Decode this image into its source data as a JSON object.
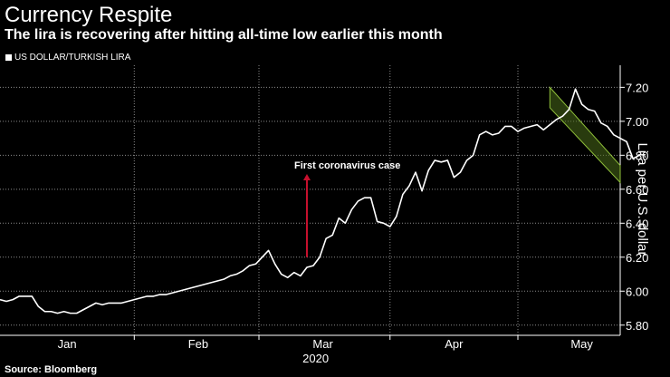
{
  "title": "Currency Respite",
  "subtitle": "The lira is recovering after hitting all-time low earlier this month",
  "legend_label": "US DOLLAR/TURKISH LIRA",
  "source": "Source: Bloomberg",
  "colors": {
    "background": "#000000",
    "line": "#ffffff",
    "arrow": "#c8102e",
    "trend_fill": "#4a6b1a",
    "trend_stroke": "#8fbf3a"
  },
  "chart_data": {
    "type": "line",
    "title": "Currency Respite",
    "ylabel": "Lira per U.S. dollar",
    "xlabel": "2020",
    "ylim": [
      5.74,
      7.33
    ],
    "yticks": [
      5.8,
      6.0,
      6.2,
      6.4,
      6.6,
      6.8,
      7.0,
      7.2
    ],
    "ytick_labels": [
      "5.80",
      "6.00",
      "6.20",
      "6.40",
      "6.60",
      "6.80",
      "7.00",
      "7.20"
    ],
    "xlim": [
      0,
      97
    ],
    "month_labels": [
      "Jan",
      "Feb",
      "Mar",
      "Apr",
      "May"
    ],
    "month_label_x": [
      10.5,
      31,
      50.5,
      71,
      91
    ],
    "month_gridlines": [
      21,
      40.5,
      61,
      81
    ],
    "year_label": "2020",
    "series": [
      {
        "name": "US DOLLAR/TURKISH LIRA",
        "values": [
          5.95,
          5.94,
          5.95,
          5.97,
          5.97,
          5.97,
          5.91,
          5.88,
          5.88,
          5.87,
          5.88,
          5.87,
          5.87,
          5.89,
          5.91,
          5.93,
          5.92,
          5.93,
          5.93,
          5.93,
          5.94,
          5.95,
          5.96,
          5.97,
          5.97,
          5.98,
          5.98,
          5.99,
          6.0,
          6.01,
          6.02,
          6.03,
          6.04,
          6.05,
          6.06,
          6.07,
          6.09,
          6.1,
          6.12,
          6.15,
          6.16,
          6.2,
          6.24,
          6.16,
          6.1,
          6.08,
          6.11,
          6.09,
          6.14,
          6.15,
          6.2,
          6.31,
          6.33,
          6.43,
          6.4,
          6.48,
          6.53,
          6.55,
          6.55,
          6.41,
          6.4,
          6.38,
          6.44,
          6.57,
          6.62,
          6.7,
          6.59,
          6.71,
          6.77,
          6.76,
          6.77,
          6.67,
          6.7,
          6.77,
          6.8,
          6.92,
          6.94,
          6.92,
          6.93,
          6.97,
          6.97,
          6.94,
          6.96,
          6.97,
          6.98,
          6.95,
          6.98,
          7.01,
          7.03,
          7.07,
          7.19,
          7.1,
          7.07,
          7.06,
          6.99,
          6.97,
          6.92,
          6.9,
          6.88,
          6.78,
          6.8
        ]
      }
    ],
    "annotations": [
      {
        "text": "First coronavirus case",
        "x": 48,
        "y_from": 6.2,
        "y_to": 6.69
      }
    ],
    "trend_channel": {
      "x_start": 86,
      "x_end": 97,
      "y_start_low": 7.08,
      "y_start_high": 7.2,
      "y_end_low": 6.64,
      "y_end_high": 6.74
    }
  }
}
